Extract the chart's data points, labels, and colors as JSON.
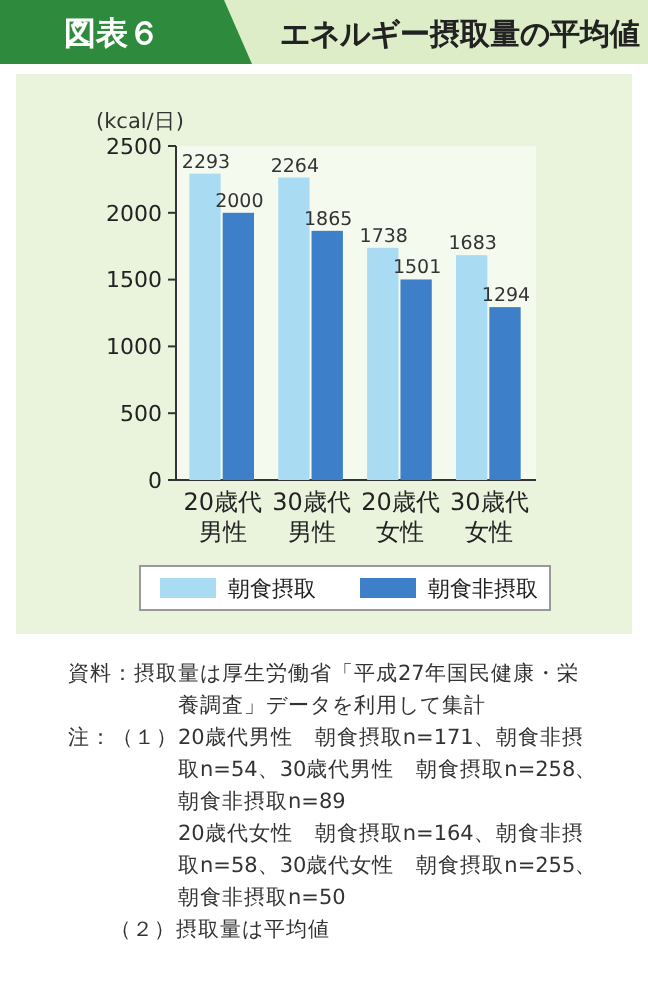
{
  "chart_data": {
    "type": "bar",
    "title": "エネルギー摂取量の平均値",
    "subtitle": "図表６",
    "ylabel": "(kcal/日)",
    "categories": [
      "20歳代男性",
      "30歳代男性",
      "20歳代女性",
      "30歳代女性"
    ],
    "series": [
      {
        "name": "朝食摂取",
        "color": "#a9dcf2",
        "values": [
          2293,
          2264,
          1738,
          1683
        ]
      },
      {
        "name": "朝食非摂取",
        "color": "#3d7fc9",
        "values": [
          2000,
          1865,
          1501,
          1294
        ]
      }
    ],
    "ylim": [
      0,
      2500
    ],
    "yticks": [
      0,
      500,
      1000,
      1500,
      2000,
      2500
    ],
    "grid": false,
    "data_labels": true,
    "legend": "bottom",
    "annotations": [
      "資料：摂取量は厚生労働省「平成27年国民健康・栄養調査」データを利用して集計",
      "注：（１）20歳代男性　朝食摂取n=171、朝食非摂取n=54、30歳代男性　朝食摂取n=258、朝食非摂取n=89",
      "20歳代女性　朝食摂取n=164、朝食非摂取n=58、30歳代女性　朝食摂取n=255、朝食非摂取n=50",
      "（２）摂取量は平均値"
    ]
  }
}
